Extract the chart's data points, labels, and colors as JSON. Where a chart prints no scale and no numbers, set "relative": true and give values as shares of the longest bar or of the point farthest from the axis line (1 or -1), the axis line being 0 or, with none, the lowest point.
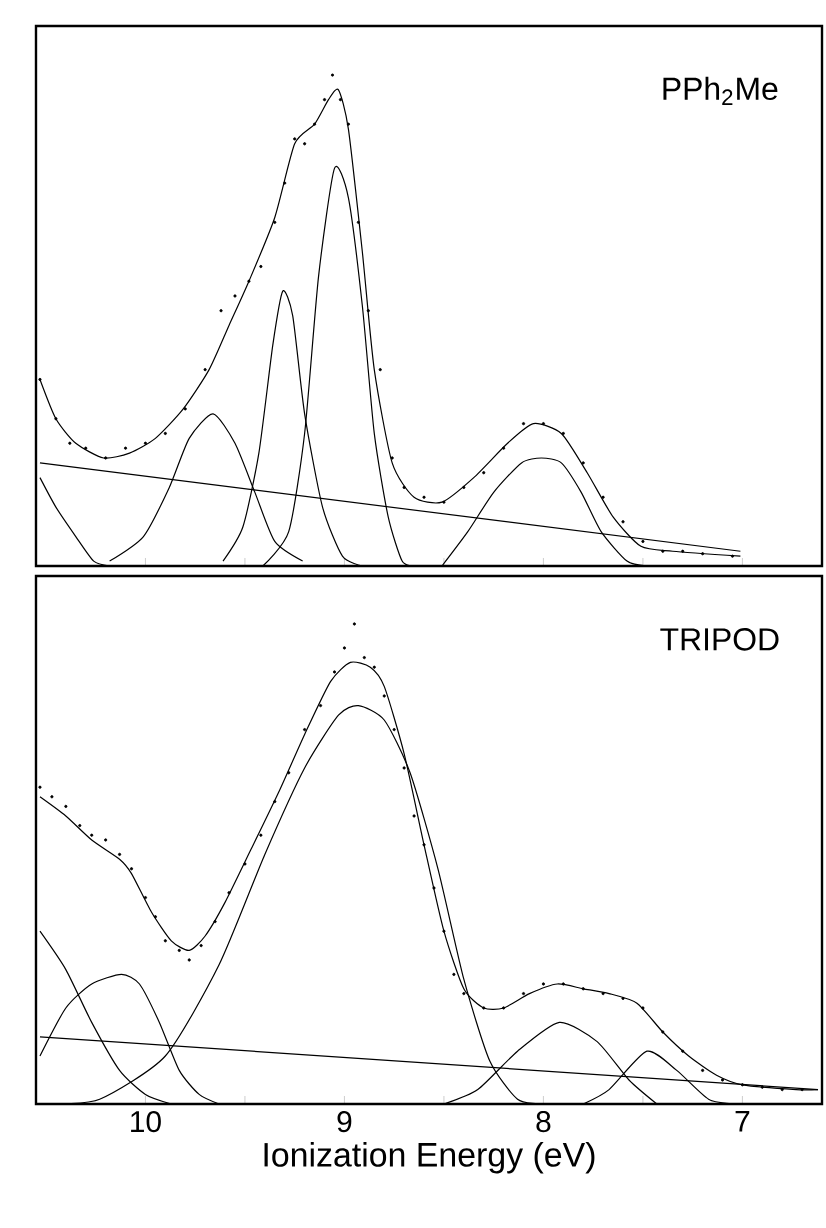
{
  "chart_data": [
    {
      "type": "line",
      "relative": true,
      "annotations": [
        "PPh$_{2}$Me"
      ],
      "xlim": [
        10.55,
        6.6
      ],
      "tick_labels": false,
      "xticks": [
        10,
        {
          "value": 9.5,
          "label": null
        },
        9,
        {
          "value": 8.5,
          "label": null
        },
        8,
        {
          "value": 7.5,
          "label": null
        },
        7
      ],
      "series": [
        {
          "type": "scatter",
          "marker": "circle",
          "color": "#000000",
          "x": [
            10.53,
            10.45,
            10.38,
            10.3,
            10.2,
            10.1,
            10.0,
            9.9,
            9.8,
            9.7,
            9.62,
            9.55,
            9.48,
            9.42,
            9.35,
            9.3,
            9.25,
            9.2,
            9.15,
            9.1,
            9.06,
            9.02,
            8.98,
            8.93,
            8.88,
            8.82,
            8.76,
            8.7,
            8.6,
            8.5,
            8.4,
            8.3,
            8.2,
            8.1,
            8.0,
            7.9,
            7.8,
            7.7,
            7.6,
            7.5,
            7.4,
            7.3,
            7.2,
            7.05
          ],
          "values": [
            0.38,
            0.3,
            0.25,
            0.24,
            0.22,
            0.24,
            0.25,
            0.27,
            0.32,
            0.4,
            0.52,
            0.55,
            0.58,
            0.61,
            0.7,
            0.78,
            0.87,
            0.86,
            0.9,
            0.95,
            1.0,
            0.95,
            0.9,
            0.7,
            0.52,
            0.4,
            0.22,
            0.16,
            0.14,
            0.13,
            0.16,
            0.19,
            0.24,
            0.29,
            0.29,
            0.27,
            0.21,
            0.14,
            0.09,
            0.05,
            0.03,
            0.03,
            0.025,
            0.02
          ]
        },
        {
          "color": "#000000",
          "x": [
            10.53,
            10.45,
            10.35,
            10.21,
            10.08,
            9.95,
            9.81,
            9.68,
            9.58,
            9.48,
            9.35,
            9.25,
            9.15,
            9.08,
            9.03,
            8.98,
            8.91,
            8.85,
            8.76,
            8.65,
            8.51,
            8.35,
            8.18,
            8.05,
            7.91,
            7.78,
            7.65,
            7.51,
            7.35,
            7.01
          ],
          "values": [
            0.38,
            0.3,
            0.25,
            0.22,
            0.23,
            0.26,
            0.32,
            0.4,
            0.49,
            0.58,
            0.71,
            0.86,
            0.9,
            0.95,
            0.97,
            0.89,
            0.64,
            0.4,
            0.21,
            0.14,
            0.13,
            0.18,
            0.25,
            0.29,
            0.27,
            0.19,
            0.1,
            0.04,
            0.03,
            0.02
          ]
        },
        {
          "color": "#000000",
          "x": [
            10.53,
            7.01
          ],
          "values": [
            0.21,
            0.03
          ]
        },
        {
          "color": "#000000",
          "x": [
            10.53,
            10.45,
            10.35,
            10.26,
            10.18
          ],
          "values": [
            0.18,
            0.12,
            0.06,
            0.01,
            0.0
          ]
        },
        {
          "color": "#000000",
          "x": [
            10.18,
            10.01,
            9.88,
            9.78,
            9.66,
            9.55,
            9.45,
            9.35,
            9.21
          ],
          "values": [
            0.01,
            0.06,
            0.16,
            0.26,
            0.31,
            0.25,
            0.15,
            0.05,
            0.01
          ]
        },
        {
          "color": "#000000",
          "x": [
            9.61,
            9.51,
            9.43,
            9.36,
            9.31,
            9.26,
            9.2,
            9.11,
            9.01,
            8.91
          ],
          "values": [
            0.01,
            0.08,
            0.23,
            0.45,
            0.56,
            0.51,
            0.31,
            0.12,
            0.02,
            0.0
          ]
        },
        {
          "color": "#000000",
          "x": [
            9.41,
            9.28,
            9.2,
            9.13,
            9.05,
            8.98,
            8.91,
            8.85,
            8.78,
            8.71,
            8.65
          ],
          "values": [
            0.0,
            0.07,
            0.27,
            0.59,
            0.81,
            0.75,
            0.53,
            0.27,
            0.1,
            0.01,
            0.0
          ]
        },
        {
          "color": "#000000",
          "x": [
            8.51,
            8.38,
            8.25,
            8.11,
            8.01,
            7.91,
            7.81,
            7.71,
            7.58,
            7.48
          ],
          "values": [
            0.0,
            0.07,
            0.15,
            0.21,
            0.22,
            0.21,
            0.15,
            0.07,
            0.01,
            0.0
          ]
        }
      ]
    },
    {
      "type": "line",
      "relative": true,
      "annotations": [
        "TRIPOD"
      ],
      "xlabel": "Ionization Energy (eV)",
      "xlim": [
        10.55,
        6.6
      ],
      "tick_labels": "x",
      "xticks": [
        10,
        {
          "value": 9.5,
          "label": null
        },
        9,
        {
          "value": 8.5,
          "label": null
        },
        8,
        {
          "value": 7.5,
          "label": null
        },
        7
      ],
      "series": [
        {
          "type": "scatter",
          "marker": "circle",
          "color": "#000000",
          "x": [
            10.53,
            10.47,
            10.4,
            10.33,
            10.27,
            10.2,
            10.13,
            10.07,
            10.0,
            9.95,
            9.9,
            9.83,
            9.78,
            9.72,
            9.65,
            9.58,
            9.5,
            9.42,
            9.35,
            9.28,
            9.2,
            9.12,
            9.05,
            9.0,
            8.95,
            8.9,
            8.85,
            8.8,
            8.75,
            8.7,
            8.65,
            8.6,
            8.55,
            8.5,
            8.45,
            8.4,
            8.3,
            8.2,
            8.1,
            8.0,
            7.9,
            7.8,
            7.7,
            7.6,
            7.5,
            7.4,
            7.3,
            7.2,
            7.1,
            7.0,
            6.9,
            6.8,
            6.7
          ],
          "values": [
            0.66,
            0.64,
            0.62,
            0.58,
            0.56,
            0.55,
            0.52,
            0.49,
            0.43,
            0.39,
            0.34,
            0.32,
            0.3,
            0.33,
            0.38,
            0.44,
            0.5,
            0.56,
            0.63,
            0.69,
            0.78,
            0.83,
            0.9,
            0.95,
            1.0,
            0.93,
            0.91,
            0.85,
            0.78,
            0.7,
            0.6,
            0.54,
            0.45,
            0.36,
            0.27,
            0.23,
            0.2,
            0.2,
            0.23,
            0.25,
            0.25,
            0.24,
            0.23,
            0.22,
            0.2,
            0.15,
            0.11,
            0.07,
            0.05,
            0.04,
            0.035,
            0.03,
            0.03
          ]
        },
        {
          "color": "#000000",
          "x": [
            10.53,
            10.4,
            10.27,
            10.13,
            10.07,
            9.97,
            9.87,
            9.78,
            9.7,
            9.6,
            9.47,
            9.33,
            9.2,
            9.07,
            8.97,
            8.87,
            8.8,
            8.7,
            8.6,
            8.5,
            8.4,
            8.3,
            8.2,
            8.07,
            7.93,
            7.8,
            7.67,
            7.53,
            7.4,
            7.27,
            7.13,
            7.0,
            6.73,
            6.62
          ],
          "values": [
            0.64,
            0.6,
            0.55,
            0.51,
            0.48,
            0.4,
            0.34,
            0.32,
            0.35,
            0.42,
            0.53,
            0.65,
            0.77,
            0.88,
            0.92,
            0.91,
            0.87,
            0.73,
            0.54,
            0.36,
            0.24,
            0.2,
            0.2,
            0.23,
            0.25,
            0.24,
            0.23,
            0.21,
            0.15,
            0.1,
            0.06,
            0.04,
            0.03,
            0.03
          ]
        },
        {
          "color": "#000000",
          "x": [
            10.53,
            6.62
          ],
          "values": [
            0.14,
            0.03
          ]
        },
        {
          "color": "#000000",
          "x": [
            10.53,
            10.4,
            10.27,
            10.13,
            10.0,
            9.87
          ],
          "values": [
            0.36,
            0.28,
            0.17,
            0.07,
            0.02,
            0.0
          ]
        },
        {
          "color": "#000000",
          "x": [
            10.53,
            10.4,
            10.27,
            10.12,
            10.03,
            9.93,
            9.83,
            9.73,
            9.63
          ],
          "values": [
            0.1,
            0.2,
            0.25,
            0.27,
            0.25,
            0.17,
            0.07,
            0.02,
            0.0
          ]
        },
        {
          "color": "#000000",
          "x": [
            10.47,
            10.23,
            9.9,
            9.63,
            9.4,
            9.2,
            9.03,
            8.93,
            8.8,
            8.67,
            8.53,
            8.4,
            8.27,
            8.13,
            8.0
          ],
          "values": [
            0.0,
            0.01,
            0.1,
            0.29,
            0.52,
            0.7,
            0.81,
            0.83,
            0.8,
            0.69,
            0.49,
            0.26,
            0.09,
            0.01,
            0.0
          ]
        },
        {
          "color": "#000000",
          "x": [
            8.5,
            8.33,
            8.13,
            7.92,
            7.73,
            7.57,
            7.43
          ],
          "values": [
            0.0,
            0.03,
            0.11,
            0.17,
            0.13,
            0.05,
            0.0
          ]
        },
        {
          "color": "#000000",
          "x": [
            7.8,
            7.67,
            7.48,
            7.33,
            7.17,
            7.03
          ],
          "values": [
            0.0,
            0.03,
            0.11,
            0.07,
            0.01,
            0.0
          ]
        }
      ]
    }
  ]
}
